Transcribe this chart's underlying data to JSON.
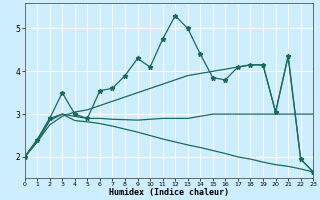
{
  "xlabel": "Humidex (Indice chaleur)",
  "background_color": "#cceeff",
  "grid_color": "#ffffff",
  "line_color": "#1a6b5a",
  "x_ticks": [
    0,
    1,
    2,
    3,
    4,
    5,
    6,
    7,
    8,
    9,
    10,
    11,
    12,
    13,
    14,
    15,
    16,
    17,
    18,
    19,
    20,
    21,
    22,
    23
  ],
  "xlim": [
    0,
    23
  ],
  "ylim": [
    1.5,
    5.6
  ],
  "y_ticks": [
    2,
    3,
    4,
    5
  ],
  "curve_markers_x": [
    0,
    1,
    2,
    3,
    4,
    5,
    6,
    7,
    8,
    9,
    10,
    11,
    12,
    13,
    14,
    15,
    16,
    17,
    18,
    19,
    20,
    21,
    22,
    23
  ],
  "curve_markers_y": [
    2.0,
    2.4,
    2.9,
    3.5,
    3.0,
    2.9,
    3.55,
    3.6,
    3.9,
    4.3,
    4.1,
    4.75,
    5.3,
    5.0,
    4.4,
    3.85,
    3.8,
    4.1,
    4.15,
    4.15,
    3.05,
    4.35,
    1.95,
    1.65
  ],
  "curve_up_x": [
    0,
    1,
    2,
    3,
    4,
    5,
    6,
    7,
    8,
    9,
    10,
    11,
    12,
    13,
    14,
    15,
    16,
    17,
    18,
    19,
    20,
    21,
    22,
    23
  ],
  "curve_up_y": [
    2.0,
    2.35,
    2.75,
    2.95,
    3.05,
    3.1,
    3.2,
    3.3,
    3.4,
    3.5,
    3.6,
    3.7,
    3.8,
    3.9,
    3.95,
    4.0,
    4.05,
    4.1,
    4.15,
    4.15,
    3.05,
    4.35,
    1.95,
    1.65
  ],
  "curve_flat_x": [
    0,
    1,
    2,
    3,
    4,
    5,
    6,
    7,
    8,
    9,
    10,
    11,
    12,
    13,
    14,
    15,
    16,
    17,
    18,
    19,
    20,
    21,
    22,
    23
  ],
  "curve_flat_y": [
    2.0,
    2.4,
    2.9,
    3.0,
    2.95,
    2.9,
    2.9,
    2.88,
    2.87,
    2.86,
    2.88,
    2.9,
    2.9,
    2.9,
    2.95,
    3.0,
    3.0,
    3.0,
    3.0,
    3.0,
    3.0,
    3.0,
    3.0,
    3.0
  ],
  "curve_down_x": [
    0,
    1,
    2,
    3,
    4,
    5,
    6,
    7,
    8,
    9,
    10,
    11,
    12,
    13,
    14,
    15,
    16,
    17,
    18,
    19,
    20,
    21,
    22,
    23
  ],
  "curve_down_y": [
    2.0,
    2.35,
    2.85,
    3.0,
    2.85,
    2.82,
    2.78,
    2.72,
    2.65,
    2.58,
    2.5,
    2.42,
    2.35,
    2.28,
    2.22,
    2.15,
    2.08,
    2.0,
    1.95,
    1.88,
    1.82,
    1.78,
    1.72,
    1.65
  ]
}
